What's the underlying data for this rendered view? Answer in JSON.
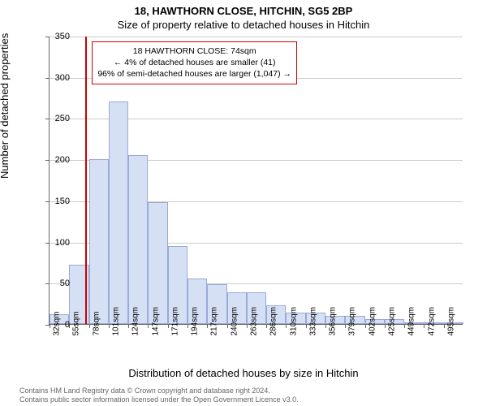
{
  "title_main": "18, HAWTHORN CLOSE, HITCHIN, SG5 2BP",
  "title_sub": "Size of property relative to detached houses in Hitchin",
  "ylabel": "Number of detached properties",
  "xlabel": "Distribution of detached houses by size in Hitchin",
  "footer_line1": "Contains HM Land Registry data © Crown copyright and database right 2024.",
  "footer_line2": "Contains public sector information licensed under the Open Government Licence v3.0.",
  "annotation": {
    "line1": "18 HAWTHORN CLOSE: 74sqm",
    "line2": "← 4% of detached houses are smaller (41)",
    "line3": "96% of semi-detached houses are larger (1,047) →"
  },
  "chart": {
    "type": "histogram",
    "bar_color": "#d6e0f5",
    "bar_border_color": "#9aaad6",
    "grid_color": "#cccccc",
    "ref_line_color": "#cc0000",
    "background_color": "#ffffff",
    "ylim": [
      0,
      350
    ],
    "ytick_step": 50,
    "ref_value_x": 74,
    "x_start": 32,
    "x_step": 23,
    "x_labels": [
      "32sqm",
      "55sqm",
      "78sqm",
      "101sqm",
      "124sqm",
      "147sqm",
      "171sqm",
      "194sqm",
      "217sqm",
      "240sqm",
      "263sqm",
      "286sqm",
      "310sqm",
      "333sqm",
      "356sqm",
      "379sqm",
      "402sqm",
      "425sqm",
      "449sqm",
      "472sqm",
      "495sqm"
    ],
    "values": [
      12,
      72,
      200,
      270,
      205,
      148,
      95,
      55,
      48,
      38,
      38,
      23,
      14,
      14,
      10,
      10,
      6,
      6,
      2,
      2,
      2
    ],
    "title_fontsize": 13,
    "label_fontsize": 13,
    "tick_fontsize": 11,
    "xtick_fontsize": 10
  }
}
